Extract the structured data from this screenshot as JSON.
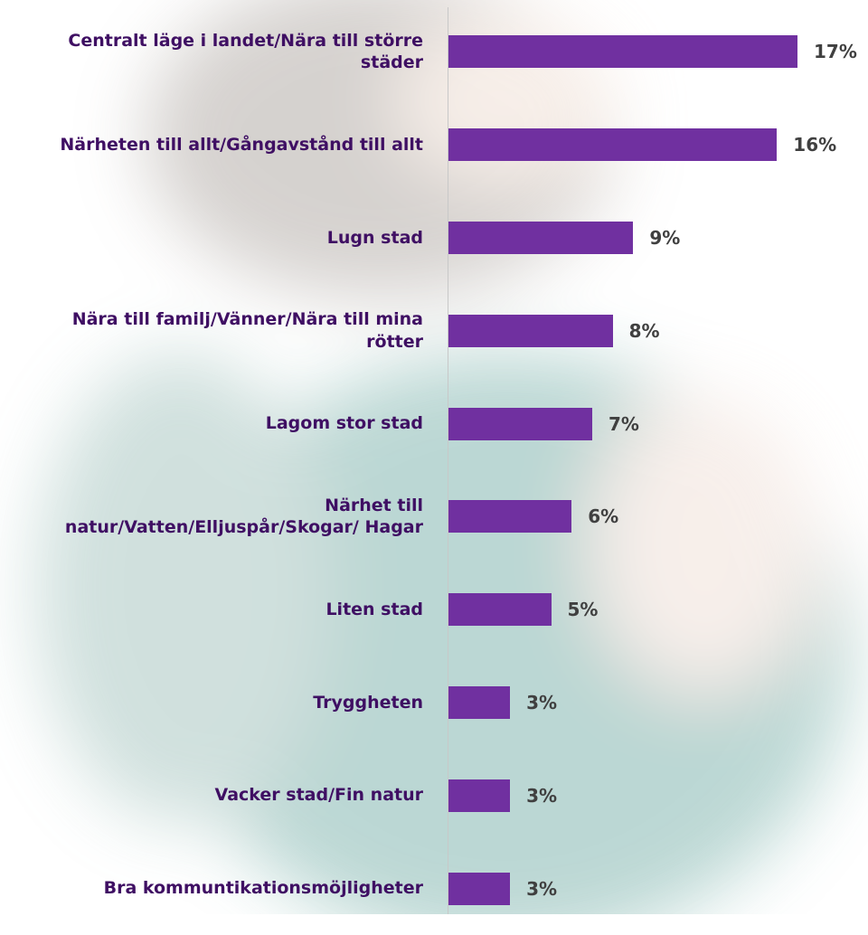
{
  "chart_data": {
    "type": "bar",
    "orientation": "horizontal",
    "categories": [
      "Centralt läge i landet/Nära till större städer",
      "Närheten till allt/Gångavstånd till allt",
      "Lugn stad",
      "Nära till familj/Vänner/Nära till mina rötter",
      "Lagom stor stad",
      "Närhet till natur/Vatten/Elljuspår/Skogar/ Hagar",
      "Liten stad",
      "Trygghet­en",
      "Vacker stad/Fin natur",
      "Bra kommuntikationsmöjligheter"
    ],
    "values": [
      17,
      16,
      9,
      8,
      7,
      6,
      5,
      3,
      3,
      3
    ],
    "value_labels": [
      "17%",
      "16%",
      "9%",
      "8%",
      "7%",
      "6%",
      "5%",
      "3%",
      "3%",
      "3%"
    ],
    "color": "#7030a0"
  }
}
